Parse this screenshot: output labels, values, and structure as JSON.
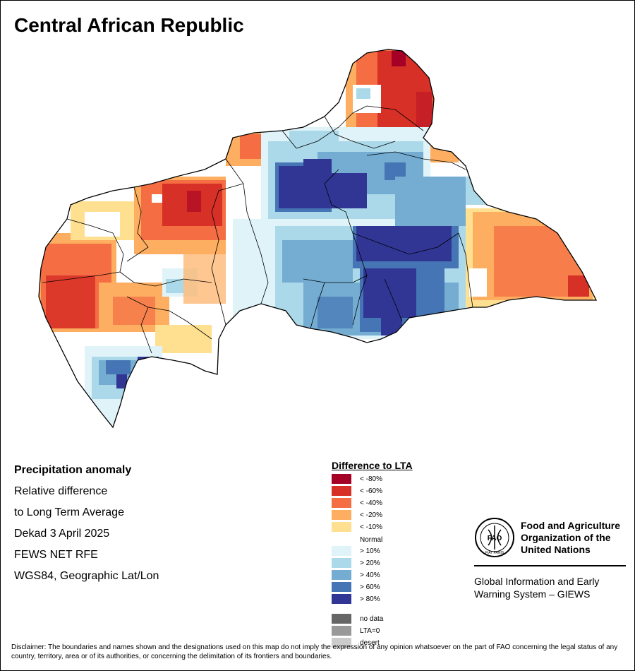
{
  "title": "Central African Republic",
  "info": {
    "line1": "Precipitation anomaly",
    "line2": "Relative difference",
    "line3": "to Long Term Average",
    "line4": "Dekad 3 April 2025",
    "line5": "FEWS NET RFE",
    "line6": "WGS84, Geographic Lat/Lon"
  },
  "legend": {
    "title": "Difference to LTA",
    "items": [
      {
        "label": "< -80%",
        "color": "#a50026"
      },
      {
        "label": "< -60%",
        "color": "#d73027"
      },
      {
        "label": "< -40%",
        "color": "#f46d43"
      },
      {
        "label": "< -20%",
        "color": "#fdae61"
      },
      {
        "label": "< -10%",
        "color": "#fee090"
      },
      {
        "label": "Normal",
        "color": "#ffffff"
      },
      {
        "label": "> 10%",
        "color": "#e0f3f8"
      },
      {
        "label": "> 20%",
        "color": "#abd9e9"
      },
      {
        "label": "> 40%",
        "color": "#74add1"
      },
      {
        "label": "> 60%",
        "color": "#4575b4"
      },
      {
        "label": "> 80%",
        "color": "#313695"
      },
      {
        "label": "no data",
        "color": "#666666"
      },
      {
        "label": "LTA=0",
        "color": "#999999"
      },
      {
        "label": "desert",
        "color": "#cccccc"
      }
    ]
  },
  "fao": {
    "name": "Food and Agriculture Organization of the United Nations",
    "giews": "Global Information and Early Warning System – GIEWS",
    "logo_text": "FAO",
    "motto": "FIAT PANIS"
  },
  "disclaimer": "Disclaimer: The boundaries and names shown and the designations used on this map do not imply the expression of any opinion whatsoever on the part of FAO concerning the legal status of any country, territory, area or of its authorities, or concerning the delimitation of its frontiers and boundaries."
}
